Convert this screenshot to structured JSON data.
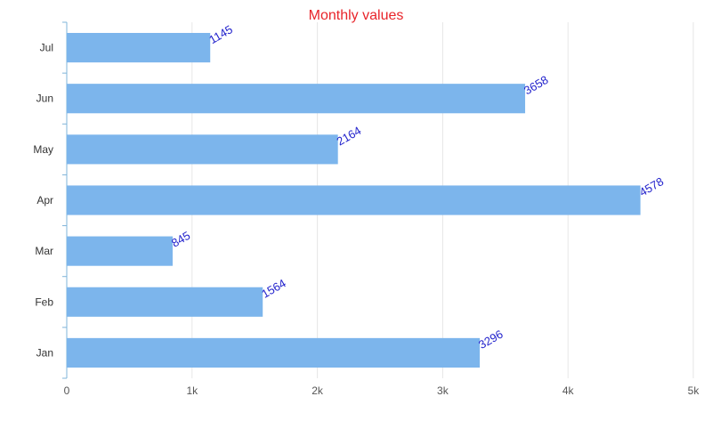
{
  "chart_data": {
    "type": "bar",
    "orientation": "horizontal",
    "title": "Monthly values",
    "categories": [
      "Jan",
      "Feb",
      "Mar",
      "Apr",
      "May",
      "Jun",
      "Jul"
    ],
    "values": [
      3296,
      1564,
      845,
      4578,
      2164,
      3658,
      1145
    ],
    "xlim": [
      0,
      5000
    ],
    "x_ticks": [
      "0",
      "1k",
      "2k",
      "3k",
      "4k",
      "5k"
    ],
    "grid": "vertical",
    "legend": "none",
    "colors": {
      "bar": "#7cb5ec",
      "title": "#e8242a",
      "data_label": "#2222cc",
      "axis": "#7fb4d9",
      "grid": "#e6e6e6"
    }
  }
}
